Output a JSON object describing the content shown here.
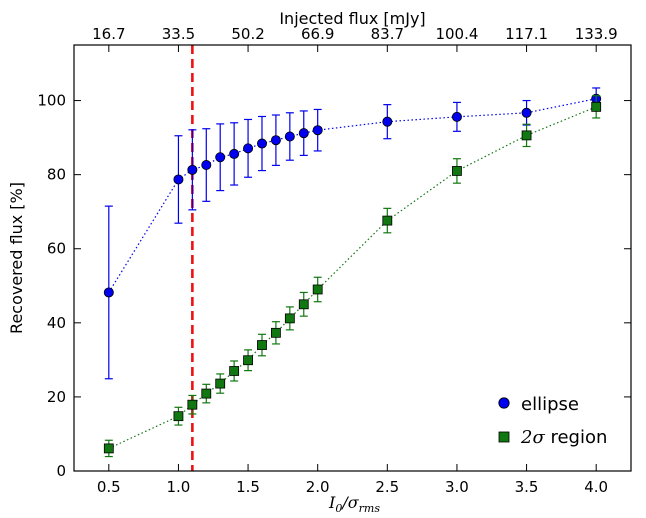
{
  "chart_data": {
    "type": "scatter",
    "title": "",
    "xlabel": "I₀/σrms",
    "xlabel_main": "I",
    "xlabel_sub1": "0",
    "xlabel_mid": "/σ",
    "xlabel_sub2": "rms",
    "ylabel": "Recovered flux [%]",
    "top_xlabel": "Injected flux [mJy]",
    "xlim": [
      0.25,
      4.25
    ],
    "ylim": [
      0,
      115
    ],
    "x_ticks": [
      0.5,
      1.0,
      1.5,
      2.0,
      2.5,
      3.0,
      3.5,
      4.0
    ],
    "x_tick_labels": [
      "0.5",
      "1.0",
      "1.5",
      "2.0",
      "2.5",
      "3.0",
      "3.5",
      "4.0"
    ],
    "y_ticks": [
      0,
      20,
      40,
      60,
      80,
      100
    ],
    "y_tick_labels": [
      "0",
      "20",
      "40",
      "60",
      "80",
      "100"
    ],
    "top_x_ticks": [
      0.5,
      1.0,
      1.5,
      2.0,
      2.5,
      3.0,
      3.5,
      4.0
    ],
    "top_x_tick_labels": [
      "16.7",
      "33.5",
      "50.2",
      "66.9",
      "83.7",
      "100.4",
      "117.1",
      "133.9"
    ],
    "grid": false,
    "legend_position": "bottom-right",
    "vline": {
      "x": 1.1,
      "color": "#ee1111",
      "style": "dashed"
    },
    "series": [
      {
        "name": "ellipse",
        "marker": "circle",
        "color": "#0000ee",
        "x": [
          0.5,
          1.0,
          1.1,
          1.2,
          1.3,
          1.4,
          1.5,
          1.6,
          1.7,
          1.8,
          1.9,
          2.0,
          2.5,
          3.0,
          3.5,
          4.0
        ],
        "y": [
          48.2,
          78.7,
          81.3,
          82.6,
          84.7,
          85.6,
          87.1,
          88.4,
          89.3,
          90.3,
          91.2,
          92.0,
          94.3,
          95.6,
          96.7,
          100.5
        ],
        "yerr": [
          23.3,
          11.8,
          10.8,
          9.8,
          9.0,
          8.4,
          7.8,
          7.3,
          6.8,
          6.4,
          6.0,
          5.6,
          4.6,
          3.9,
          3.3,
          2.9
        ]
      },
      {
        "name": "2σ region",
        "name_symbol": "2σ",
        "name_rest": " region",
        "marker": "square",
        "color": "#117711",
        "x": [
          0.5,
          1.0,
          1.1,
          1.2,
          1.3,
          1.4,
          1.5,
          1.6,
          1.7,
          1.8,
          1.9,
          2.0,
          2.5,
          3.0,
          3.5,
          4.0
        ],
        "y": [
          6.1,
          14.8,
          17.9,
          20.9,
          23.6,
          27.0,
          29.9,
          34.0,
          37.3,
          41.2,
          45.0,
          49.0,
          67.6,
          81.0,
          90.6,
          98.3
        ],
        "yerr": [
          2.2,
          2.4,
          2.5,
          2.5,
          2.6,
          2.7,
          2.8,
          2.9,
          3.0,
          3.1,
          3.2,
          3.3,
          3.3,
          3.3,
          3.0,
          3.0
        ]
      }
    ]
  }
}
